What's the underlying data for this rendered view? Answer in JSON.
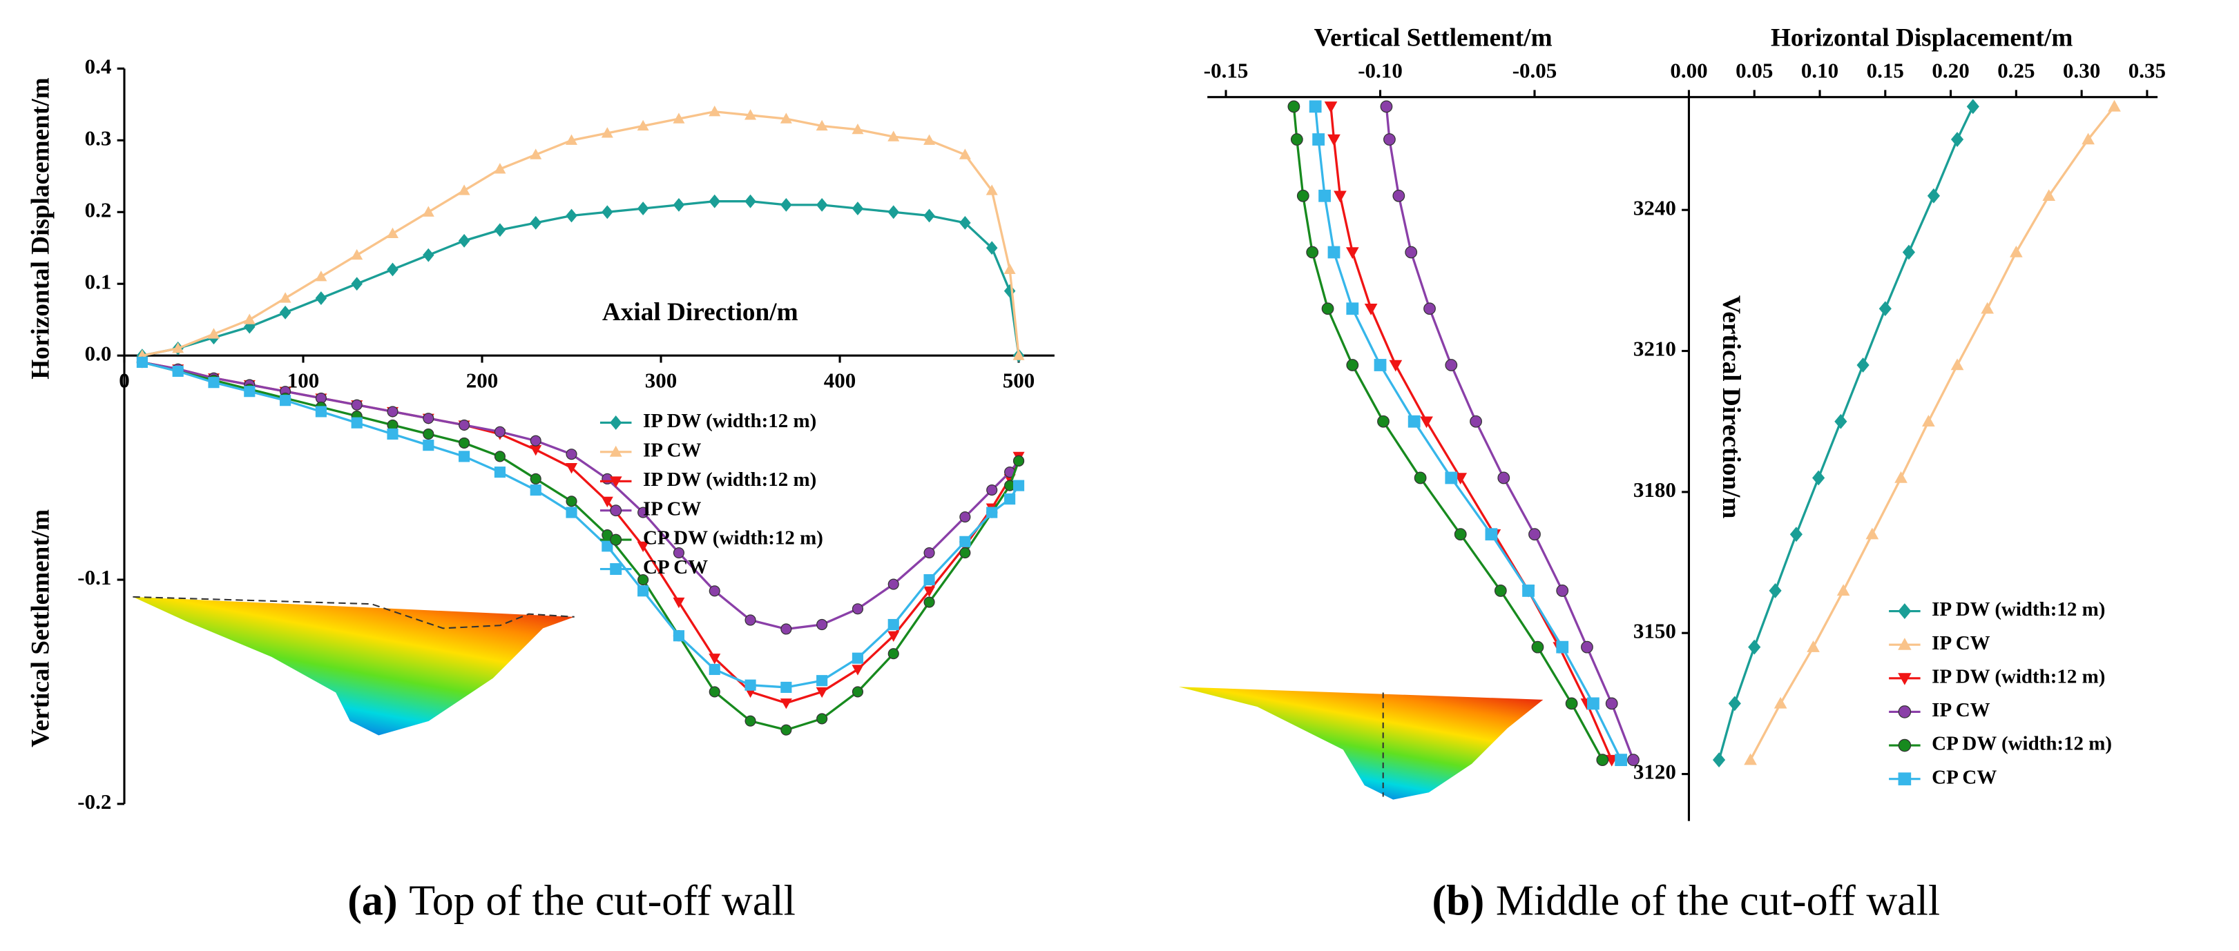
{
  "chart_data": [
    {
      "type": "line",
      "x_label": "Axial Direction/m",
      "y_label": "Horizontal Displacement/m",
      "y2_label": "Vertical Settlement/m",
      "caption_label": "(a)",
      "caption": "Top of the cut-off wall",
      "xlim": [
        0,
        520
      ],
      "xticks": [
        0,
        100,
        200,
        300,
        400,
        500
      ],
      "ylim": [
        0,
        0.4
      ],
      "yticks": [
        {
          "value": 0,
          "label": "0.0"
        },
        0.1,
        0.2,
        0.3,
        0.4
      ],
      "y2lim": [
        -0.2,
        0
      ],
      "y2ticks": [
        -0.2,
        -0.1
      ],
      "x": [
        10,
        30,
        50,
        70,
        90,
        110,
        130,
        150,
        170,
        190,
        210,
        230,
        250,
        270,
        290,
        310,
        330,
        350,
        370,
        390,
        410,
        430,
        450,
        470,
        485,
        495,
        500
      ],
      "series": [
        {
          "name": "IP DW (width:12 m)",
          "color": "#1a9e96",
          "marker": "diamond",
          "values": [
            0,
            0.01,
            0.025,
            0.04,
            0.06,
            0.08,
            0.1,
            0.12,
            0.14,
            0.16,
            0.175,
            0.185,
            0.195,
            0.2,
            0.205,
            0.21,
            0.215,
            0.215,
            0.21,
            0.21,
            0.205,
            0.2,
            0.195,
            0.185,
            0.15,
            0.09,
            0
          ]
        },
        {
          "name": "IP CW",
          "color": "#f9c38a",
          "marker": "triangle",
          "values": [
            0,
            0.01,
            0.03,
            0.05,
            0.08,
            0.11,
            0.14,
            0.17,
            0.2,
            0.23,
            0.26,
            0.28,
            0.3,
            0.31,
            0.32,
            0.33,
            0.34,
            0.335,
            0.33,
            0.32,
            0.315,
            0.305,
            0.3,
            0.28,
            0.23,
            0.12,
            0
          ]
        },
        {
          "name": "IP DW (width:12 m)",
          "color": "#f01414",
          "marker": "triangle-down",
          "axis": "y2",
          "values": [
            -0.003,
            -0.006,
            -0.01,
            -0.013,
            -0.016,
            -0.019,
            -0.022,
            -0.025,
            -0.028,
            -0.031,
            -0.035,
            -0.042,
            -0.05,
            -0.065,
            -0.085,
            -0.11,
            -0.135,
            -0.15,
            -0.155,
            -0.15,
            -0.14,
            -0.125,
            -0.105,
            -0.085,
            -0.068,
            -0.055,
            -0.045
          ]
        },
        {
          "name": "IP CW",
          "color": "#8a3fa8",
          "marker": "circle",
          "axis": "y2",
          "values": [
            -0.003,
            -0.006,
            -0.01,
            -0.013,
            -0.016,
            -0.019,
            -0.022,
            -0.025,
            -0.028,
            -0.031,
            -0.034,
            -0.038,
            -0.044,
            -0.055,
            -0.07,
            -0.088,
            -0.105,
            -0.118,
            -0.122,
            -0.12,
            -0.113,
            -0.102,
            -0.088,
            -0.072,
            -0.06,
            -0.052,
            -0.047
          ]
        },
        {
          "name": "CP DW (width:12 m)",
          "color": "#178a1e",
          "marker": "circle",
          "axis": "y2",
          "values": [
            -0.003,
            -0.007,
            -0.011,
            -0.015,
            -0.019,
            -0.023,
            -0.027,
            -0.031,
            -0.035,
            -0.039,
            -0.045,
            -0.055,
            -0.065,
            -0.08,
            -0.1,
            -0.125,
            -0.15,
            -0.163,
            -0.167,
            -0.162,
            -0.15,
            -0.133,
            -0.11,
            -0.088,
            -0.07,
            -0.058,
            -0.047
          ]
        },
        {
          "name": "CP CW",
          "color": "#36b6ea",
          "marker": "square",
          "axis": "y2",
          "values": [
            -0.003,
            -0.007,
            -0.012,
            -0.016,
            -0.02,
            -0.025,
            -0.03,
            -0.035,
            -0.04,
            -0.045,
            -0.052,
            -0.06,
            -0.07,
            -0.085,
            -0.105,
            -0.125,
            -0.14,
            -0.147,
            -0.148,
            -0.145,
            -0.135,
            -0.12,
            -0.1,
            -0.083,
            -0.07,
            -0.064,
            -0.058
          ]
        }
      ]
    },
    {
      "type": "line",
      "x_label": "Vertical Settlement/m",
      "x2_label": "Horizontal Displacement/m",
      "y_label": "Vertical Direction/m",
      "caption_label": "(b)",
      "caption": "Middle of the cut-off wall",
      "xlim": [
        -0.156,
        0
      ],
      "xticks": [
        -0.15,
        {
          "value": -0.1,
          "label": "-0.10"
        },
        -0.05
      ],
      "x2lim": [
        0,
        0.358
      ],
      "x2ticks": [
        {
          "value": 0,
          "label": "0.00"
        },
        0.05,
        {
          "value": 0.1,
          "label": "0.10"
        },
        0.15,
        {
          "value": 0.2,
          "label": "0.20"
        },
        0.25,
        {
          "value": 0.3,
          "label": "0.30"
        },
        0.35
      ],
      "ylim": [
        3110,
        3264
      ],
      "yticks": [
        3120,
        3150,
        3180,
        3210,
        3240
      ],
      "y": [
        3123,
        3135,
        3147,
        3159,
        3171,
        3183,
        3195,
        3207,
        3219,
        3231,
        3243,
        3255,
        3262
      ],
      "series": [
        {
          "name": "IP DW (width:12 m)",
          "color": "#1a9e96",
          "marker": "diamond",
          "axis": "x2",
          "values": [
            0.023,
            0.035,
            0.05,
            0.066,
            0.082,
            0.099,
            0.116,
            0.133,
            0.15,
            0.168,
            0.187,
            0.205,
            0.217
          ]
        },
        {
          "name": "IP CW",
          "color": "#f9c38a",
          "marker": "triangle",
          "axis": "x2",
          "values": [
            0.047,
            0.07,
            0.095,
            0.118,
            0.14,
            0.162,
            0.183,
            0.205,
            0.228,
            0.25,
            0.275,
            0.305,
            0.325
          ]
        },
        {
          "name": "IP DW (width:12 m)",
          "color": "#f01414",
          "marker": "triangle-down",
          "values": [
            -0.025,
            -0.033,
            -0.042,
            -0.052,
            -0.063,
            -0.074,
            -0.085,
            -0.095,
            -0.103,
            -0.109,
            -0.113,
            -0.115,
            -0.116
          ]
        },
        {
          "name": "IP CW",
          "color": "#8a3fa8",
          "marker": "circle",
          "values": [
            -0.018,
            -0.025,
            -0.033,
            -0.041,
            -0.05,
            -0.06,
            -0.069,
            -0.077,
            -0.084,
            -0.09,
            -0.094,
            -0.097,
            -0.098
          ]
        },
        {
          "name": "CP DW (width:12 m)",
          "color": "#178a1e",
          "marker": "circle",
          "values": [
            -0.028,
            -0.038,
            -0.049,
            -0.061,
            -0.074,
            -0.087,
            -0.099,
            -0.109,
            -0.117,
            -0.122,
            -0.125,
            -0.127,
            -0.128
          ]
        },
        {
          "name": "CP CW",
          "color": "#36b6ea",
          "marker": "square",
          "values": [
            -0.022,
            -0.031,
            -0.041,
            -0.052,
            -0.064,
            -0.077,
            -0.089,
            -0.1,
            -0.109,
            -0.115,
            -0.118,
            -0.12,
            -0.121
          ]
        }
      ]
    }
  ]
}
